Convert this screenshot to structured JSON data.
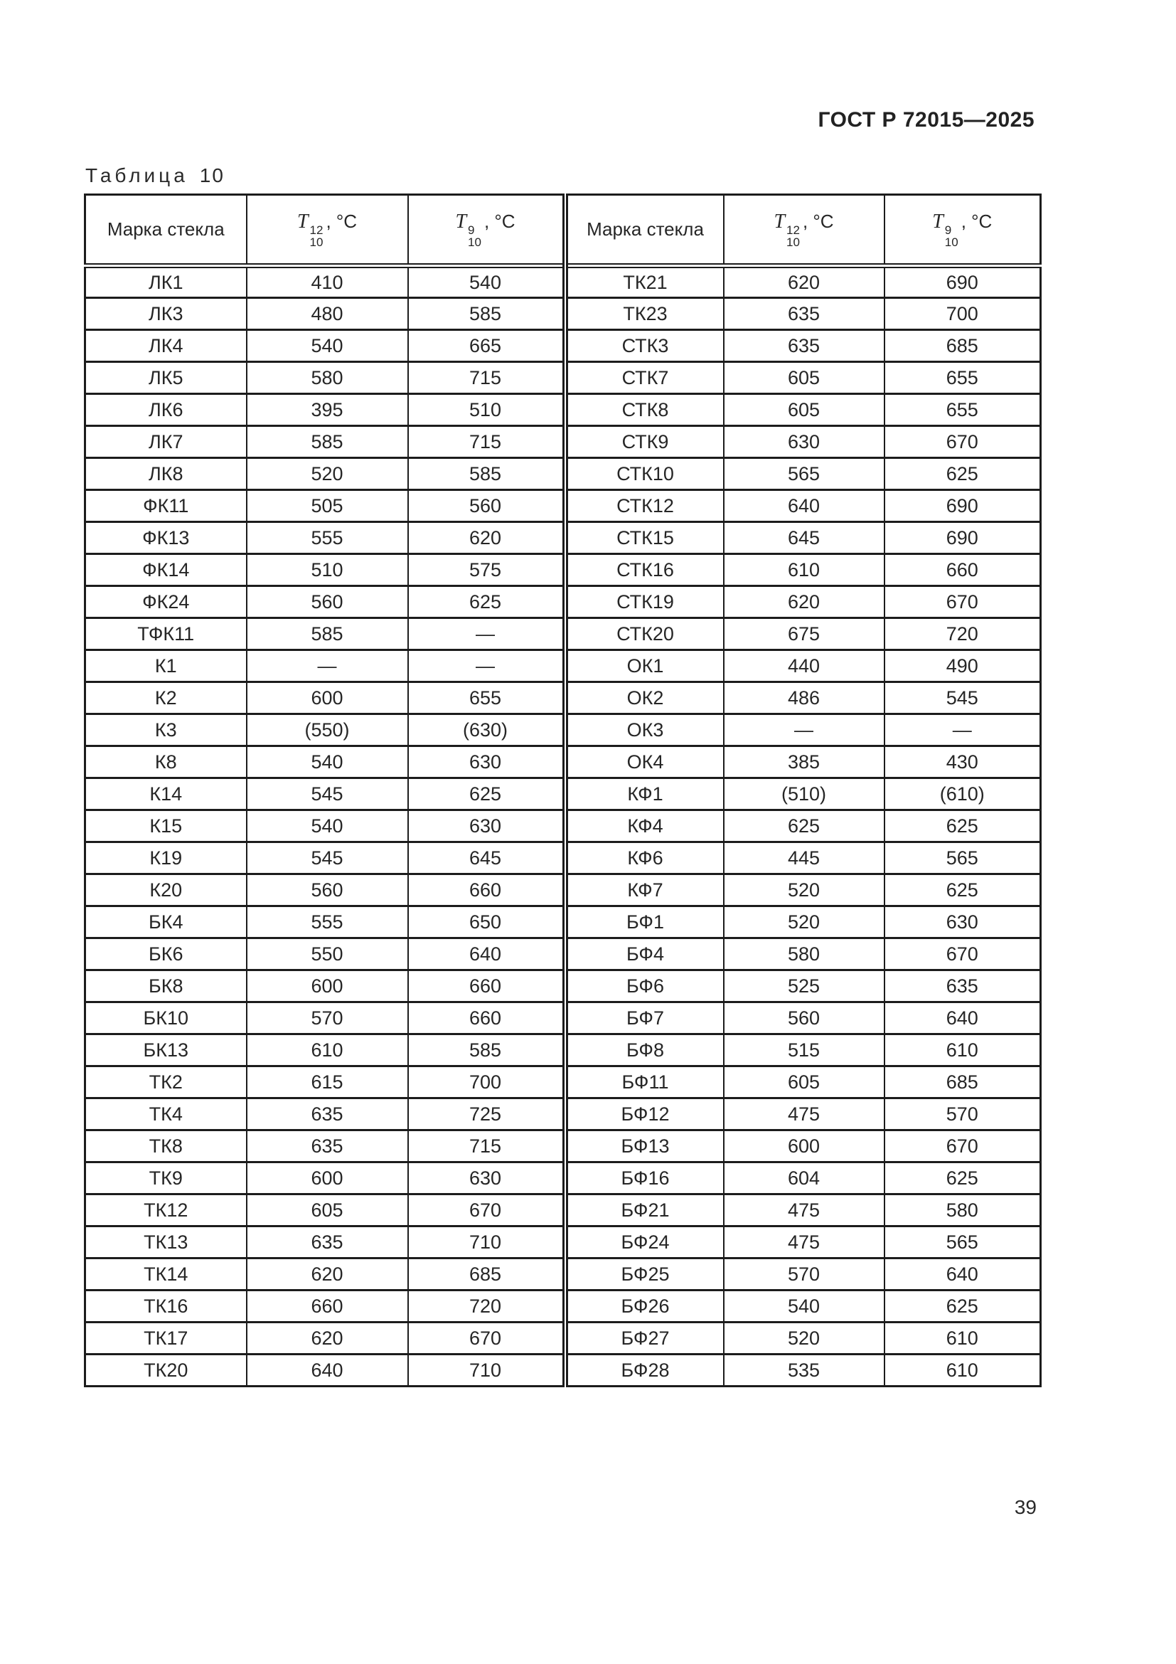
{
  "page": {
    "doc_header": "ГОСТ Р 72015—2025",
    "table_caption": "Таблица",
    "table_number": "10",
    "page_number": "39"
  },
  "table": {
    "mark_header": "Марка стекла",
    "t12_header": {
      "sym": "T",
      "sup": "12",
      "sub": "10",
      "unit": ", °С"
    },
    "t9_header": {
      "sym": "T",
      "sup": "9",
      "sub": "10",
      "unit": ", °С"
    },
    "left_rows": [
      [
        "ЛК1",
        "410",
        "540"
      ],
      [
        "ЛК3",
        "480",
        "585"
      ],
      [
        "ЛК4",
        "540",
        "665"
      ],
      [
        "ЛК5",
        "580",
        "715"
      ],
      [
        "ЛК6",
        "395",
        "510"
      ],
      [
        "ЛК7",
        "585",
        "715"
      ],
      [
        "ЛК8",
        "520",
        "585"
      ],
      [
        "ФК11",
        "505",
        "560"
      ],
      [
        "ФК13",
        "555",
        "620"
      ],
      [
        "ФК14",
        "510",
        "575"
      ],
      [
        "ФК24",
        "560",
        "625"
      ],
      [
        "ТФК11",
        "585",
        "—"
      ],
      [
        "К1",
        "—",
        "—"
      ],
      [
        "К2",
        "600",
        "655"
      ],
      [
        "К3",
        "(550)",
        "(630)"
      ],
      [
        "К8",
        "540",
        "630"
      ],
      [
        "К14",
        "545",
        "625"
      ],
      [
        "К15",
        "540",
        "630"
      ],
      [
        "К19",
        "545",
        "645"
      ],
      [
        "К20",
        "560",
        "660"
      ],
      [
        "БК4",
        "555",
        "650"
      ],
      [
        "БК6",
        "550",
        "640"
      ],
      [
        "БК8",
        "600",
        "660"
      ],
      [
        "БК10",
        "570",
        "660"
      ],
      [
        "БК13",
        "610",
        "585"
      ],
      [
        "ТК2",
        "615",
        "700"
      ],
      [
        "ТК4",
        "635",
        "725"
      ],
      [
        "ТК8",
        "635",
        "715"
      ],
      [
        "ТК9",
        "600",
        "630"
      ],
      [
        "ТК12",
        "605",
        "670"
      ],
      [
        "ТК13",
        "635",
        "710"
      ],
      [
        "ТК14",
        "620",
        "685"
      ],
      [
        "ТК16",
        "660",
        "720"
      ],
      [
        "ТК17",
        "620",
        "670"
      ],
      [
        "ТК20",
        "640",
        "710"
      ]
    ],
    "right_rows": [
      [
        "ТК21",
        "620",
        "690"
      ],
      [
        "ТК23",
        "635",
        "700"
      ],
      [
        "СТК3",
        "635",
        "685"
      ],
      [
        "СТК7",
        "605",
        "655"
      ],
      [
        "СТК8",
        "605",
        "655"
      ],
      [
        "СТК9",
        "630",
        "670"
      ],
      [
        "СТК10",
        "565",
        "625"
      ],
      [
        "СТК12",
        "640",
        "690"
      ],
      [
        "СТК15",
        "645",
        "690"
      ],
      [
        "СТК16",
        "610",
        "660"
      ],
      [
        "СТК19",
        "620",
        "670"
      ],
      [
        "СТК20",
        "675",
        "720"
      ],
      [
        "ОК1",
        "440",
        "490"
      ],
      [
        "ОК2",
        "486",
        "545"
      ],
      [
        "ОК3",
        "—",
        "—"
      ],
      [
        "ОК4",
        "385",
        "430"
      ],
      [
        "КФ1",
        "(510)",
        "(610)"
      ],
      [
        "КФ4",
        "625",
        "625"
      ],
      [
        "КФ6",
        "445",
        "565"
      ],
      [
        "КФ7",
        "520",
        "625"
      ],
      [
        "БФ1",
        "520",
        "630"
      ],
      [
        "БФ4",
        "580",
        "670"
      ],
      [
        "БФ6",
        "525",
        "635"
      ],
      [
        "БФ7",
        "560",
        "640"
      ],
      [
        "БФ8",
        "515",
        "610"
      ],
      [
        "БФ11",
        "605",
        "685"
      ],
      [
        "БФ12",
        "475",
        "570"
      ],
      [
        "БФ13",
        "600",
        "670"
      ],
      [
        "БФ16",
        "604",
        "625"
      ],
      [
        "БФ21",
        "475",
        "580"
      ],
      [
        "БФ24",
        "475",
        "565"
      ],
      [
        "БФ25",
        "570",
        "640"
      ],
      [
        "БФ26",
        "540",
        "625"
      ],
      [
        "БФ27",
        "520",
        "610"
      ],
      [
        "БФ28",
        "535",
        "610"
      ]
    ]
  }
}
